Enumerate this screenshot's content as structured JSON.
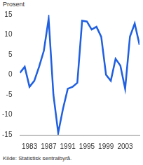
{
  "chart_data": {
    "type": "line",
    "ylabel": "Prosent",
    "source": "Kilde: Statistisk sentralbyrå.",
    "x": [
      1981,
      1982,
      1983,
      1984,
      1985,
      1986,
      1987,
      1988,
      1989,
      1990,
      1991,
      1992,
      1993,
      1994,
      1995,
      1996,
      1997,
      1998,
      1999,
      2000,
      2001,
      2002,
      2003,
      2004,
      2005,
      2006
    ],
    "values": [
      0.5,
      2,
      -3,
      -1.5,
      2,
      6,
      14,
      -5,
      -14.5,
      -8.5,
      -3.5,
      -3,
      -2,
      13.5,
      13.3,
      11.3,
      12,
      9.5,
      0,
      -1.5,
      4,
      2.3,
      -3.5,
      9.5,
      12.8,
      7.5
    ],
    "color": "#1f5fe0",
    "xlim": [
      1981,
      2006
    ],
    "xticks": [
      1983,
      1987,
      1991,
      1995,
      1999,
      2003
    ],
    "ylim": [
      -15,
      15
    ],
    "yticks": [
      -15,
      -10,
      -5,
      0,
      5,
      10,
      15
    ],
    "grid": false
  }
}
